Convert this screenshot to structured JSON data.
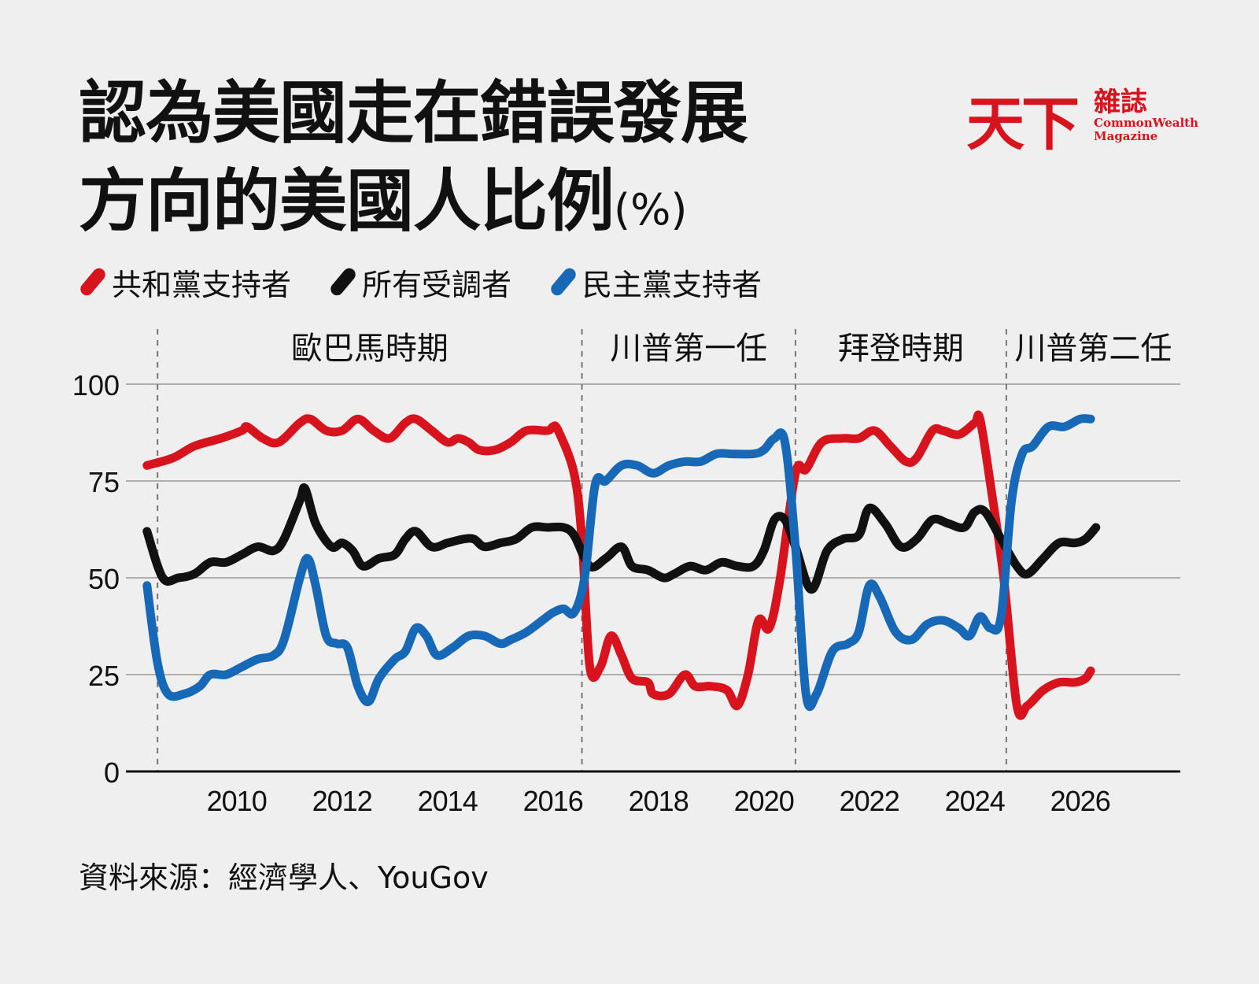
{
  "title": {
    "line1": "認為美國走在錯誤發展",
    "line2": "方向的美國人比例",
    "unit": "(%)"
  },
  "logo": {
    "mark": "天下",
    "zh": "雜誌",
    "en": "CommonWealth\nMagazine"
  },
  "source": "資料來源：經濟學人、YouGov",
  "colors": {
    "republican": "#d7141e",
    "all": "#111111",
    "democrat": "#1769b8"
  },
  "chart_data": {
    "type": "line",
    "title": "認為美國走在錯誤發展方向的美國人比例",
    "ylabel": "",
    "xlabel": "",
    "ylim": [
      0,
      100
    ],
    "xlim": [
      2007.9,
      2027.9
    ],
    "yticks": [
      0,
      25,
      50,
      75,
      100
    ],
    "xticks": [
      2010,
      2012,
      2014,
      2016,
      2018,
      2020,
      2022,
      2024,
      2026
    ],
    "grid": "horizontal",
    "legend_position": "top-left",
    "periods": [
      {
        "label": "歐巴馬時期",
        "start": 2008.5,
        "end": 2016.55
      },
      {
        "label": "川普第一任",
        "start": 2016.55,
        "end": 2020.6
      },
      {
        "label": "拜登時期",
        "start": 2020.6,
        "end": 2024.6
      },
      {
        "label": "川普第二任",
        "start": 2024.6,
        "end": 2027.9
      }
    ],
    "series": [
      {
        "name": "共和黨支持者",
        "color_key": "republican",
        "points": [
          [
            2008.3,
            79
          ],
          [
            2008.8,
            81
          ],
          [
            2009.2,
            84
          ],
          [
            2009.7,
            86
          ],
          [
            2010.1,
            88
          ],
          [
            2010.2,
            89
          ],
          [
            2010.5,
            86
          ],
          [
            2010.8,
            85
          ],
          [
            2011.2,
            90
          ],
          [
            2011.4,
            91
          ],
          [
            2011.7,
            88
          ],
          [
            2012.0,
            88
          ],
          [
            2012.3,
            91
          ],
          [
            2012.6,
            88
          ],
          [
            2012.9,
            86
          ],
          [
            2013.2,
            90
          ],
          [
            2013.4,
            91
          ],
          [
            2013.7,
            88
          ],
          [
            2014.0,
            85
          ],
          [
            2014.2,
            86
          ],
          [
            2014.4,
            85
          ],
          [
            2014.6,
            83
          ],
          [
            2014.9,
            83
          ],
          [
            2015.2,
            85
          ],
          [
            2015.5,
            88
          ],
          [
            2015.9,
            88
          ],
          [
            2016.0,
            89
          ],
          [
            2016.1,
            88
          ],
          [
            2016.4,
            77
          ],
          [
            2016.55,
            60
          ],
          [
            2016.7,
            27
          ],
          [
            2016.9,
            27
          ],
          [
            2017.1,
            35
          ],
          [
            2017.3,
            30
          ],
          [
            2017.5,
            24
          ],
          [
            2017.8,
            23
          ],
          [
            2017.9,
            20
          ],
          [
            2018.2,
            20
          ],
          [
            2018.5,
            25
          ],
          [
            2018.7,
            22
          ],
          [
            2019.0,
            22
          ],
          [
            2019.3,
            21
          ],
          [
            2019.5,
            17
          ],
          [
            2019.7,
            25
          ],
          [
            2019.9,
            39
          ],
          [
            2020.1,
            37
          ],
          [
            2020.3,
            49
          ],
          [
            2020.6,
            77
          ],
          [
            2020.8,
            78
          ],
          [
            2021.1,
            85
          ],
          [
            2021.5,
            86
          ],
          [
            2021.8,
            86
          ],
          [
            2022.1,
            88
          ],
          [
            2022.4,
            84
          ],
          [
            2022.7,
            80
          ],
          [
            2022.9,
            81
          ],
          [
            2023.2,
            88
          ],
          [
            2023.4,
            88
          ],
          [
            2023.7,
            87
          ],
          [
            2024.0,
            90
          ],
          [
            2024.1,
            91
          ],
          [
            2024.3,
            74
          ],
          [
            2024.55,
            50
          ],
          [
            2024.8,
            17
          ],
          [
            2025.0,
            17
          ],
          [
            2025.3,
            21
          ],
          [
            2025.6,
            23
          ],
          [
            2025.9,
            23
          ],
          [
            2026.1,
            24
          ],
          [
            2026.2,
            26
          ]
        ]
      },
      {
        "name": "所有受調者",
        "color_key": "all",
        "points": [
          [
            2008.3,
            62
          ],
          [
            2008.6,
            50
          ],
          [
            2008.9,
            50
          ],
          [
            2009.2,
            51
          ],
          [
            2009.5,
            54
          ],
          [
            2009.8,
            54
          ],
          [
            2010.1,
            56
          ],
          [
            2010.4,
            58
          ],
          [
            2010.7,
            57
          ],
          [
            2010.9,
            60
          ],
          [
            2011.2,
            70
          ],
          [
            2011.3,
            73
          ],
          [
            2011.5,
            64
          ],
          [
            2011.8,
            58
          ],
          [
            2012.0,
            59
          ],
          [
            2012.2,
            57
          ],
          [
            2012.4,
            53
          ],
          [
            2012.7,
            55
          ],
          [
            2013.0,
            56
          ],
          [
            2013.2,
            60
          ],
          [
            2013.4,
            62
          ],
          [
            2013.7,
            58
          ],
          [
            2014.0,
            59
          ],
          [
            2014.3,
            60
          ],
          [
            2014.5,
            60
          ],
          [
            2014.7,
            58
          ],
          [
            2015.0,
            59
          ],
          [
            2015.3,
            60
          ],
          [
            2015.6,
            63
          ],
          [
            2015.9,
            63
          ],
          [
            2016.2,
            63
          ],
          [
            2016.4,
            61
          ],
          [
            2016.7,
            53
          ],
          [
            2017.0,
            55
          ],
          [
            2017.3,
            58
          ],
          [
            2017.5,
            53
          ],
          [
            2017.8,
            52
          ],
          [
            2018.1,
            50
          ],
          [
            2018.3,
            51
          ],
          [
            2018.6,
            53
          ],
          [
            2018.9,
            52
          ],
          [
            2019.2,
            54
          ],
          [
            2019.5,
            53
          ],
          [
            2019.8,
            53
          ],
          [
            2020.0,
            57
          ],
          [
            2020.2,
            65
          ],
          [
            2020.4,
            65
          ],
          [
            2020.6,
            58
          ],
          [
            2020.9,
            47
          ],
          [
            2021.2,
            57
          ],
          [
            2021.5,
            60
          ],
          [
            2021.8,
            61
          ],
          [
            2022.0,
            68
          ],
          [
            2022.3,
            64
          ],
          [
            2022.6,
            58
          ],
          [
            2022.9,
            60
          ],
          [
            2023.2,
            65
          ],
          [
            2023.5,
            64
          ],
          [
            2023.8,
            63
          ],
          [
            2024.0,
            67
          ],
          [
            2024.2,
            67
          ],
          [
            2024.5,
            60
          ],
          [
            2024.8,
            53
          ],
          [
            2025.0,
            51
          ],
          [
            2025.3,
            55
          ],
          [
            2025.6,
            59
          ],
          [
            2025.9,
            59
          ],
          [
            2026.1,
            60
          ],
          [
            2026.3,
            63
          ]
        ]
      },
      {
        "name": "民主黨支持者",
        "color_key": "democrat",
        "points": [
          [
            2008.3,
            48
          ],
          [
            2008.5,
            28
          ],
          [
            2008.7,
            20
          ],
          [
            2009.0,
            20
          ],
          [
            2009.3,
            22
          ],
          [
            2009.5,
            25
          ],
          [
            2009.8,
            25
          ],
          [
            2010.1,
            27
          ],
          [
            2010.4,
            29
          ],
          [
            2010.7,
            30
          ],
          [
            2010.9,
            34
          ],
          [
            2011.2,
            50
          ],
          [
            2011.35,
            55
          ],
          [
            2011.5,
            48
          ],
          [
            2011.7,
            35
          ],
          [
            2011.9,
            33
          ],
          [
            2012.1,
            32
          ],
          [
            2012.3,
            22
          ],
          [
            2012.5,
            18
          ],
          [
            2012.7,
            24
          ],
          [
            2013.0,
            29
          ],
          [
            2013.2,
            31
          ],
          [
            2013.4,
            37
          ],
          [
            2013.6,
            35
          ],
          [
            2013.8,
            30
          ],
          [
            2014.1,
            32
          ],
          [
            2014.4,
            35
          ],
          [
            2014.7,
            35
          ],
          [
            2015.0,
            33
          ],
          [
            2015.2,
            34
          ],
          [
            2015.5,
            36
          ],
          [
            2015.8,
            39
          ],
          [
            2016.0,
            41
          ],
          [
            2016.2,
            42
          ],
          [
            2016.4,
            41
          ],
          [
            2016.6,
            50
          ],
          [
            2016.8,
            74
          ],
          [
            2017.0,
            75
          ],
          [
            2017.3,
            79
          ],
          [
            2017.6,
            79
          ],
          [
            2017.9,
            77
          ],
          [
            2018.2,
            79
          ],
          [
            2018.5,
            80
          ],
          [
            2018.8,
            80
          ],
          [
            2019.1,
            82
          ],
          [
            2019.4,
            82
          ],
          [
            2019.8,
            82
          ],
          [
            2020.0,
            83
          ],
          [
            2020.2,
            86
          ],
          [
            2020.4,
            85
          ],
          [
            2020.6,
            58
          ],
          [
            2020.8,
            20
          ],
          [
            2021.0,
            20
          ],
          [
            2021.3,
            31
          ],
          [
            2021.6,
            33
          ],
          [
            2021.8,
            36
          ],
          [
            2022.0,
            48
          ],
          [
            2022.2,
            45
          ],
          [
            2022.5,
            36
          ],
          [
            2022.8,
            34
          ],
          [
            2023.1,
            38
          ],
          [
            2023.4,
            39
          ],
          [
            2023.7,
            37
          ],
          [
            2023.9,
            35
          ],
          [
            2024.1,
            40
          ],
          [
            2024.3,
            37
          ],
          [
            2024.5,
            40
          ],
          [
            2024.7,
            70
          ],
          [
            2024.9,
            82
          ],
          [
            2025.1,
            84
          ],
          [
            2025.4,
            89
          ],
          [
            2025.7,
            89
          ],
          [
            2026.0,
            91
          ],
          [
            2026.2,
            91
          ]
        ]
      }
    ]
  }
}
